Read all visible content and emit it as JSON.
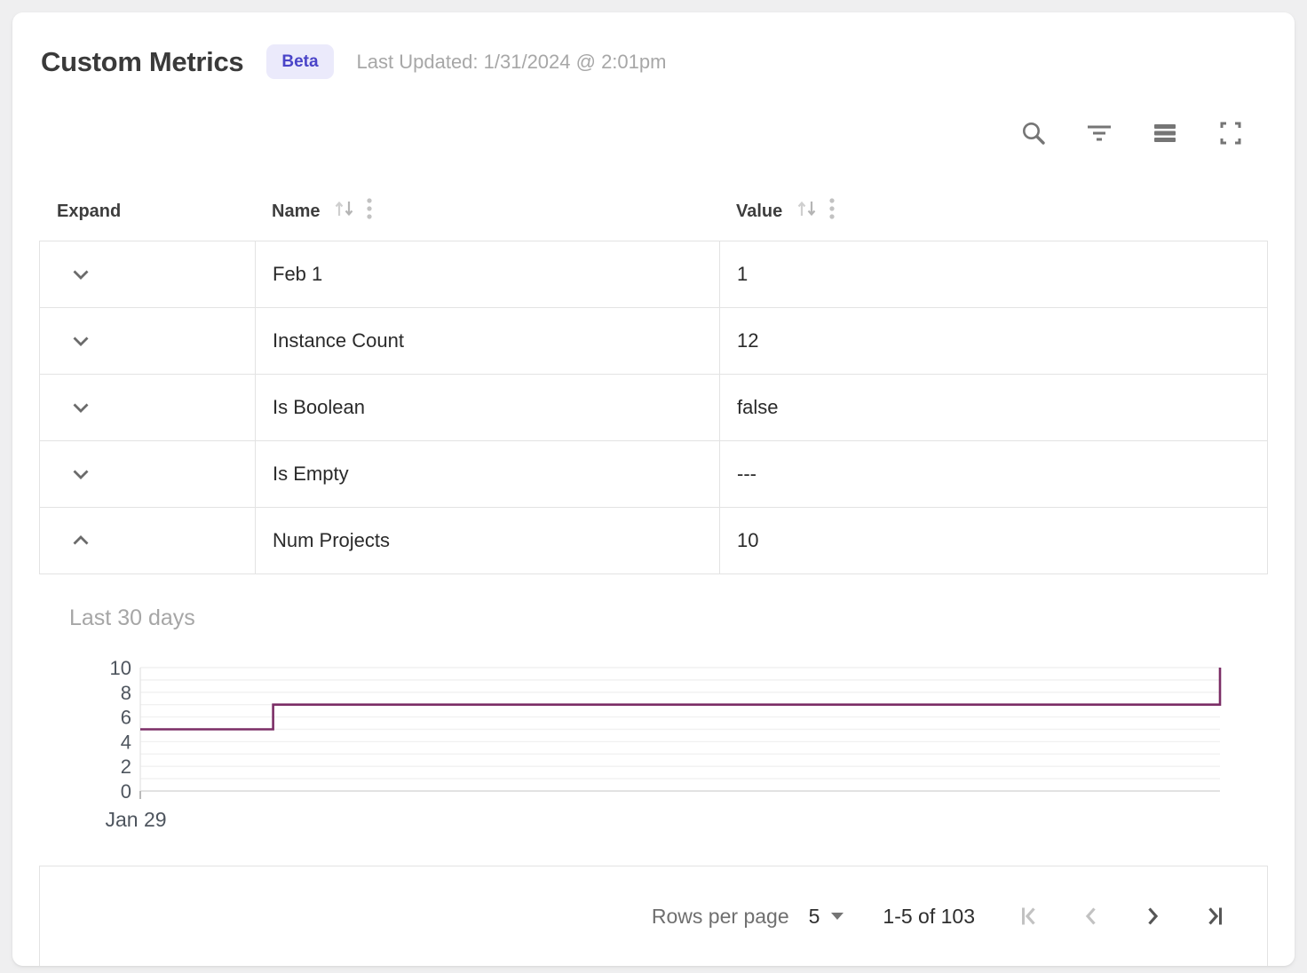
{
  "header": {
    "title": "Custom Metrics",
    "badge": "Beta",
    "last_updated": "Last Updated: 1/31/2024 @ 2:01pm"
  },
  "toolbar": {
    "icons": [
      "search",
      "filter-list",
      "density",
      "fullscreen"
    ],
    "icon_color": "#757575"
  },
  "table": {
    "columns": {
      "expand": "Expand",
      "name": "Name",
      "value": "Value"
    },
    "header_icons": [
      "sort-arrows",
      "column-menu-dots"
    ],
    "rows": [
      {
        "name": "Feb 1",
        "value": "1",
        "expanded": false
      },
      {
        "name": "Instance Count",
        "value": "12",
        "expanded": false
      },
      {
        "name": "Is Boolean",
        "value": "false",
        "expanded": false
      },
      {
        "name": "Is Empty",
        "value": "---",
        "expanded": false
      },
      {
        "name": "Num Projects",
        "value": "10",
        "expanded": true
      }
    ]
  },
  "chart_data": {
    "type": "line",
    "step": true,
    "series_name": "Num Projects",
    "title": "Last 30 days",
    "x_tick_labels": [
      "Jan 29"
    ],
    "y_ticks": [
      0,
      2,
      4,
      6,
      8,
      10
    ],
    "ylim": [
      0,
      10
    ],
    "grid_every": 1,
    "line_color": "#7b2d66",
    "points": [
      {
        "x_frac": 0,
        "y": 5
      },
      {
        "x_frac": 0.123,
        "y": 5
      },
      {
        "x_frac": 0.123,
        "y": 7
      },
      {
        "x_frac": 1,
        "y": 7
      },
      {
        "x_frac": 1,
        "y": 10
      }
    ]
  },
  "pagination": {
    "rows_per_page_label": "Rows per page",
    "rows_per_page_value": "5",
    "range_label": "1-5 of 103",
    "icons": [
      "first-page",
      "chevron-left",
      "chevron-right",
      "last-page"
    ],
    "disabled_icon_color": "#c2c2c2",
    "enabled_icon_color": "#565656"
  },
  "colors": {
    "page_background": "#efeff0",
    "card_background": "#ffffff",
    "border": "#e3e3e3",
    "badge_background": "#ebeafb",
    "badge_text": "#4a44c8",
    "muted_text": "#a7a7a7",
    "axis_text": "#4e555e",
    "chart_line": "#7b2d66"
  }
}
